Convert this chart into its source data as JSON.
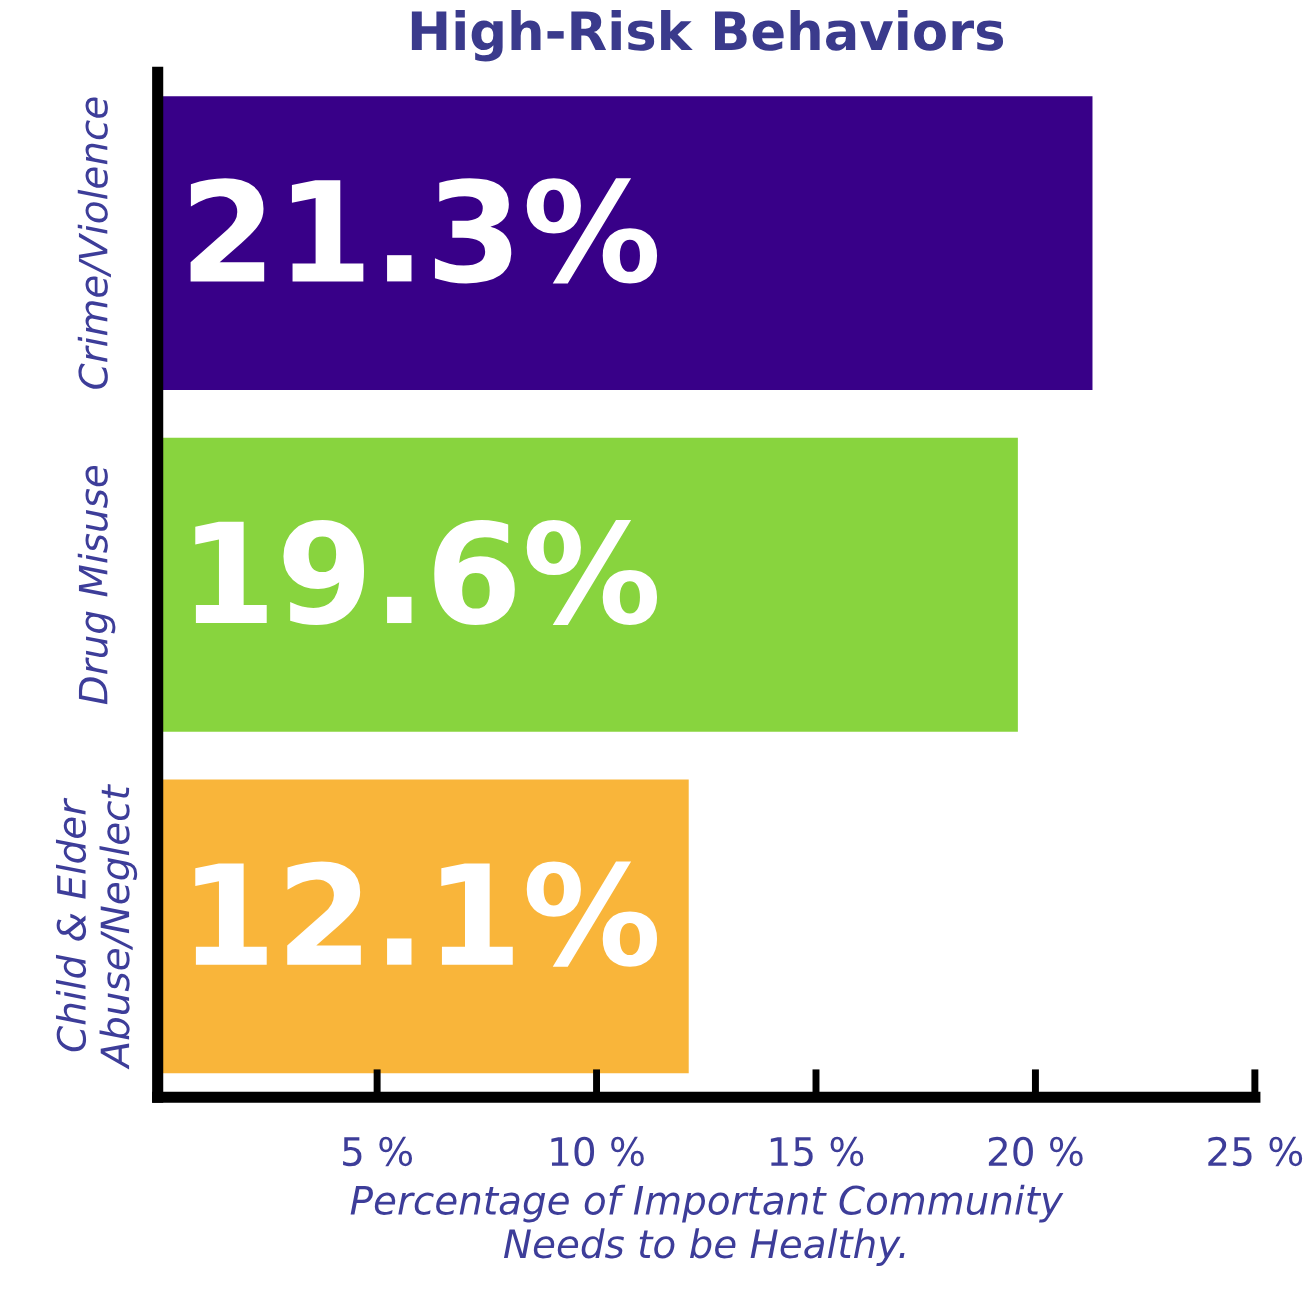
{
  "chart_data": {
    "type": "bar",
    "orientation": "horizontal",
    "title": "High-Risk Behaviors",
    "categories": [
      "Crime/Violence",
      "Drug Misuse",
      "Child & Elder\nAbuse/Neglect"
    ],
    "values": [
      21.3,
      19.6,
      12.1
    ],
    "value_labels": [
      "21.3%",
      "19.6%",
      "12.1%"
    ],
    "colors": [
      "#380088",
      "#88d43e",
      "#f9b53a"
    ],
    "xlabel": "Percentage of Important Community\nNeeds to be Healthy.",
    "xlim": [
      0,
      25
    ],
    "xticks": [
      {
        "value": 5,
        "label": "5 %"
      },
      {
        "value": 10,
        "label": "10 %"
      },
      {
        "value": 15,
        "label": "15 %"
      },
      {
        "value": 20,
        "label": "20 %"
      },
      {
        "value": 25,
        "label": "25 %"
      }
    ],
    "grid": false,
    "legend": false
  }
}
